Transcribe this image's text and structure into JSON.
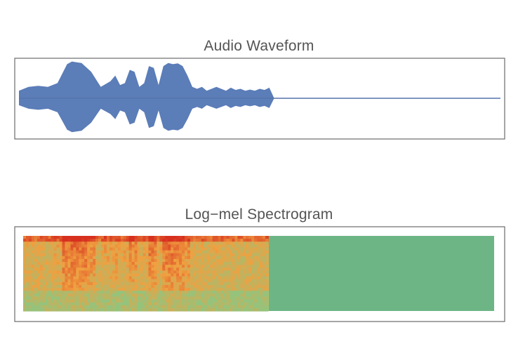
{
  "charts": {
    "waveform_title": "Audio Waveform",
    "spectrogram_title": "Log−mel Spectrogram"
  },
  "colors": {
    "waveform_fill": "#5b7db8",
    "waveform_line": "#5574ab",
    "frame_border": "#6b6b6b",
    "spectrogram_high": "#d7301f",
    "spectrogram_mid": "#f0a040",
    "spectrogram_low": "#93c47d",
    "spectrogram_padding": "#6db585"
  },
  "chart_data": [
    {
      "type": "area",
      "title": "Audio Waveform",
      "xlabel": "",
      "ylabel": "",
      "x_range": [
        0,
        1
      ],
      "y_range": [
        -1,
        1
      ],
      "x": [
        0.0,
        0.02,
        0.04,
        0.06,
        0.08,
        0.1,
        0.11,
        0.12,
        0.13,
        0.15,
        0.17,
        0.19,
        0.2,
        0.21,
        0.22,
        0.23,
        0.24,
        0.25,
        0.26,
        0.27,
        0.28,
        0.29,
        0.3,
        0.31,
        0.32,
        0.33,
        0.34,
        0.35,
        0.36,
        0.37,
        0.38,
        0.39,
        0.4,
        0.41,
        0.42,
        0.43,
        0.44,
        0.45,
        0.46,
        0.47,
        0.48,
        0.49,
        0.5,
        0.51,
        0.52,
        0.53,
        1.0
      ],
      "amplitude": [
        0.2,
        0.3,
        0.33,
        0.3,
        0.4,
        0.9,
        0.97,
        0.95,
        0.93,
        0.7,
        0.3,
        0.45,
        0.6,
        0.35,
        0.4,
        0.75,
        0.7,
        0.3,
        0.4,
        0.85,
        0.8,
        0.35,
        0.85,
        0.93,
        0.9,
        0.92,
        0.85,
        0.6,
        0.3,
        0.25,
        0.3,
        0.2,
        0.25,
        0.3,
        0.25,
        0.2,
        0.28,
        0.22,
        0.25,
        0.2,
        0.23,
        0.2,
        0.25,
        0.22,
        0.28,
        0.0,
        0.0
      ]
    },
    {
      "type": "heatmap",
      "title": "Log−mel Spectrogram",
      "xlabel": "",
      "ylabel": "",
      "active_fraction": 0.52,
      "scale": [
        "#93c47d",
        "#f0a040",
        "#d7301f"
      ]
    }
  ]
}
